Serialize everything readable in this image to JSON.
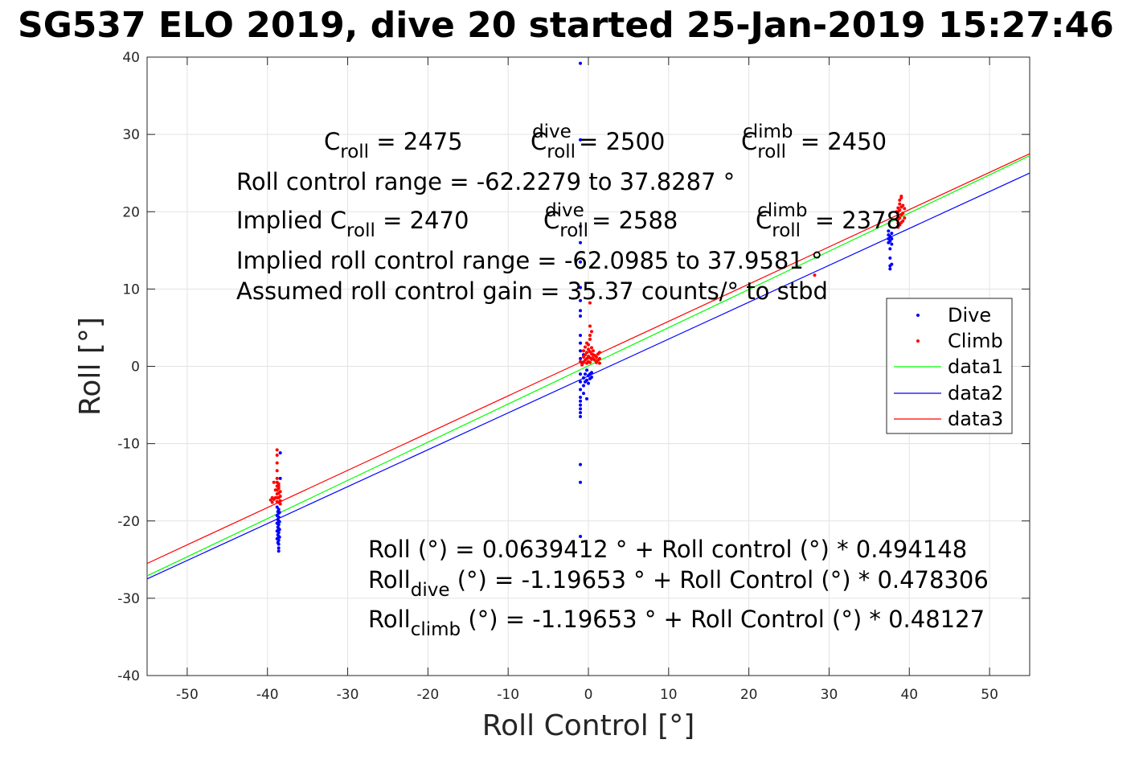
{
  "title": "SG537 ELO 2019, dive 20 started 25-Jan-2019 15:27:46",
  "chart_data": {
    "type": "scatter",
    "xlabel": "Roll Control [°]",
    "ylabel": "Roll [°]",
    "xlim": [
      -55,
      55
    ],
    "ylim": [
      -40,
      40
    ],
    "xticks": [
      -50,
      -40,
      -30,
      -20,
      -10,
      0,
      10,
      20,
      30,
      40,
      50
    ],
    "yticks": [
      -40,
      -30,
      -20,
      -10,
      0,
      10,
      20,
      30,
      40
    ],
    "grid": true,
    "legend_position": "right",
    "legend": [
      "Dive",
      "Climb",
      "data1",
      "data2",
      "data3"
    ],
    "series": [
      {
        "name": "Dive",
        "kind": "points",
        "color": "#0000ff",
        "points": [
          [
            -38.6,
            -18.5
          ],
          [
            -38.6,
            -19.0
          ],
          [
            -38.6,
            -19.5
          ],
          [
            -38.6,
            -20.0
          ],
          [
            -38.6,
            -20.5
          ],
          [
            -38.6,
            -21.0
          ],
          [
            -38.6,
            -21.5
          ],
          [
            -38.6,
            -22.0
          ],
          [
            -38.6,
            -22.5
          ],
          [
            -38.6,
            -23.0
          ],
          [
            -38.6,
            -23.5
          ],
          [
            -38.6,
            -23.9
          ],
          [
            -38.7,
            -18.8
          ],
          [
            -38.7,
            -19.8
          ],
          [
            -38.7,
            -20.8
          ],
          [
            -38.7,
            -21.8
          ],
          [
            -38.7,
            -22.8
          ],
          [
            -38.8,
            -18.2
          ],
          [
            -38.8,
            -19.3
          ],
          [
            -38.8,
            -20.3
          ],
          [
            -38.8,
            -21.3
          ],
          [
            -38.8,
            -22.3
          ],
          [
            -38.5,
            -18.9
          ],
          [
            -38.5,
            -20.1
          ],
          [
            -38.5,
            -21.1
          ],
          [
            -38.5,
            -22.1
          ],
          [
            -38.4,
            -11.2
          ],
          [
            -38.4,
            -14.5
          ],
          [
            -1.0,
            39.2
          ],
          [
            -1.0,
            29.3
          ],
          [
            -1.0,
            18.1
          ],
          [
            -1.0,
            16.0
          ],
          [
            -1.0,
            13.5
          ],
          [
            -1.0,
            10.2
          ],
          [
            -1.0,
            8.5
          ],
          [
            -1.0,
            7.2
          ],
          [
            -1.0,
            6.5
          ],
          [
            -1.0,
            4.0
          ],
          [
            -1.0,
            3.0
          ],
          [
            -1.0,
            2.0
          ],
          [
            -1.0,
            1.0
          ],
          [
            -1.0,
            -1.0
          ],
          [
            -1.0,
            -2.0
          ],
          [
            -1.0,
            -3.0
          ],
          [
            -1.0,
            -4.0
          ],
          [
            -1.0,
            -4.5
          ],
          [
            -1.0,
            -5.0
          ],
          [
            -1.0,
            -5.5
          ],
          [
            -1.0,
            -6.0
          ],
          [
            -1.0,
            -6.5
          ],
          [
            -1.0,
            -12.7
          ],
          [
            -1.0,
            -15.0
          ],
          [
            -1.0,
            -22.0
          ],
          [
            -0.6,
            -1.5
          ],
          [
            -0.6,
            -2.5
          ],
          [
            -0.6,
            -3.5
          ],
          [
            -0.4,
            -1.0
          ],
          [
            -0.4,
            -2.0
          ],
          [
            -0.2,
            -0.5
          ],
          [
            -0.2,
            -1.8
          ],
          [
            0.0,
            -1.2
          ],
          [
            0.0,
            -2.2
          ],
          [
            0.2,
            -1.0
          ],
          [
            0.2,
            -1.6
          ],
          [
            0.4,
            -0.8
          ],
          [
            0.4,
            -1.4
          ],
          [
            -0.2,
            -4.2
          ],
          [
            -0.6,
            1.5
          ],
          [
            -0.8,
            0.5
          ],
          [
            37.4,
            16.0
          ],
          [
            37.4,
            16.5
          ],
          [
            37.4,
            17.0
          ],
          [
            37.4,
            17.5
          ],
          [
            37.6,
            16.2
          ],
          [
            37.6,
            16.8
          ],
          [
            37.6,
            15.2
          ],
          [
            37.6,
            14.0
          ],
          [
            37.6,
            13.0
          ],
          [
            37.6,
            12.6
          ],
          [
            37.8,
            16.5
          ],
          [
            37.8,
            17.2
          ],
          [
            37.8,
            15.8
          ],
          [
            37.8,
            13.2
          ]
        ]
      },
      {
        "name": "Climb",
        "kind": "points",
        "color": "#ff0000",
        "points": [
          [
            -38.8,
            -10.8
          ],
          [
            -38.8,
            -11.5
          ],
          [
            -38.8,
            -12.5
          ],
          [
            -38.8,
            -13.5
          ],
          [
            -38.8,
            -14.5
          ],
          [
            -38.8,
            -15.0
          ],
          [
            -38.8,
            -15.5
          ],
          [
            -38.8,
            -16.0
          ],
          [
            -38.8,
            -16.5
          ],
          [
            -38.8,
            -17.0
          ],
          [
            -38.8,
            -17.5
          ],
          [
            -38.6,
            -15.2
          ],
          [
            -38.6,
            -15.8
          ],
          [
            -38.6,
            -16.4
          ],
          [
            -38.6,
            -17.0
          ],
          [
            -38.6,
            -17.6
          ],
          [
            -38.6,
            -15.5
          ],
          [
            -38.4,
            -16.8
          ],
          [
            -38.4,
            -17.4
          ],
          [
            -38.4,
            -17.8
          ],
          [
            -38.4,
            -16.2
          ],
          [
            -39.0,
            -16.0
          ],
          [
            -39.0,
            -17.0
          ],
          [
            -39.2,
            -15.0
          ],
          [
            -39.2,
            -17.2
          ],
          [
            -39.4,
            -17.0
          ],
          [
            -39.4,
            -17.6
          ],
          [
            -39.6,
            -17.3
          ],
          [
            -0.6,
            0.5
          ],
          [
            -0.6,
            1.2
          ],
          [
            -0.6,
            2.0
          ],
          [
            -0.4,
            0.8
          ],
          [
            -0.4,
            1.5
          ],
          [
            -0.4,
            2.5
          ],
          [
            -0.2,
            0.4
          ],
          [
            -0.2,
            1.0
          ],
          [
            -0.2,
            1.8
          ],
          [
            -0.2,
            3.0
          ],
          [
            0.0,
            0.6
          ],
          [
            0.0,
            1.3
          ],
          [
            0.0,
            2.2
          ],
          [
            0.0,
            2.8
          ],
          [
            0.2,
            0.5
          ],
          [
            0.2,
            1.1
          ],
          [
            0.2,
            1.9
          ],
          [
            0.2,
            3.5
          ],
          [
            0.4,
            0.9
          ],
          [
            0.4,
            1.6
          ],
          [
            0.4,
            2.4
          ],
          [
            0.6,
            1.0
          ],
          [
            0.6,
            1.5
          ],
          [
            0.6,
            2.0
          ],
          [
            0.8,
            0.8
          ],
          [
            0.8,
            1.4
          ],
          [
            1.0,
            0.5
          ],
          [
            1.0,
            1.2
          ],
          [
            1.2,
            0.8
          ],
          [
            1.2,
            1.6
          ],
          [
            1.4,
            0.4
          ],
          [
            1.4,
            1.0
          ],
          [
            1.4,
            1.8
          ],
          [
            0.2,
            4.0
          ],
          [
            0.2,
            5.2
          ],
          [
            0.4,
            4.5
          ],
          [
            0.2,
            8.2
          ],
          [
            -0.8,
            0.2
          ],
          [
            -1.0,
            0.6
          ],
          [
            28.2,
            11.8
          ],
          [
            38.6,
            18.0
          ],
          [
            38.6,
            18.5
          ],
          [
            38.6,
            19.0
          ],
          [
            38.6,
            19.5
          ],
          [
            38.6,
            20.0
          ],
          [
            38.6,
            20.5
          ],
          [
            38.8,
            18.3
          ],
          [
            38.8,
            19.2
          ],
          [
            38.8,
            20.2
          ],
          [
            38.8,
            21.0
          ],
          [
            38.8,
            21.5
          ],
          [
            39.0,
            18.6
          ],
          [
            39.0,
            19.6
          ],
          [
            39.0,
            20.6
          ],
          [
            39.0,
            21.8
          ],
          [
            39.0,
            22.0
          ],
          [
            39.2,
            18.8
          ],
          [
            39.2,
            19.8
          ],
          [
            39.2,
            20.8
          ],
          [
            39.4,
            19.2
          ],
          [
            39.4,
            20.4
          ],
          [
            38.4,
            19.0
          ],
          [
            38.4,
            20.0
          ]
        ]
      },
      {
        "name": "data1",
        "kind": "line",
        "color": "#00ff00",
        "x": [
          -55,
          55
        ],
        "y": [
          -27.11,
          27.24
        ]
      },
      {
        "name": "data2",
        "kind": "line",
        "color": "#0000ff",
        "x": [
          -55,
          55
        ],
        "y": [
          -27.5,
          25.0
        ]
      },
      {
        "name": "data3",
        "kind": "line",
        "color": "#ff0000",
        "x": [
          -55,
          55
        ],
        "y": [
          -25.5,
          27.5
        ]
      }
    ],
    "annotations": [
      {
        "parts": [
          [
            [
              "C",
              ""
            ],
            [
              "roll",
              "sub"
            ],
            [
              " = 2475",
              ""
            ]
          ],
          [
            [
              "C",
              ""
            ],
            [
              "roll",
              "sub"
            ],
            [
              "dive",
              "sup"
            ],
            [
              " = 2500",
              ""
            ]
          ],
          [
            [
              "C",
              ""
            ],
            [
              "roll",
              "sub"
            ],
            [
              "climb",
              "sup"
            ],
            [
              " = 2450",
              ""
            ]
          ]
        ]
      },
      {
        "parts": [
          [
            [
              "Roll control range = -62.2279 to 37.8287 °",
              ""
            ]
          ]
        ]
      },
      {
        "parts": [
          [
            [
              "Implied C",
              ""
            ],
            [
              "roll",
              "sub"
            ],
            [
              " = 2470",
              ""
            ]
          ],
          [
            [
              "C",
              ""
            ],
            [
              "roll",
              "sub"
            ],
            [
              "dive",
              "sup"
            ],
            [
              " = 2588",
              ""
            ]
          ],
          [
            [
              "C",
              ""
            ],
            [
              "roll",
              "sub"
            ],
            [
              "climb",
              "sup"
            ],
            [
              " = 2378",
              ""
            ]
          ]
        ]
      },
      {
        "parts": [
          [
            [
              "Implied roll control range = -62.0985 to 37.9581 °",
              ""
            ]
          ]
        ]
      },
      {
        "parts": [
          [
            [
              "Assumed roll control gain = 35.37 counts/° to stbd",
              ""
            ]
          ]
        ]
      },
      {
        "parts": [
          [
            [
              "Roll (°) = 0.0639412 ° + Roll control (°) * 0.494148",
              ""
            ]
          ]
        ]
      },
      {
        "parts": [
          [
            [
              "Roll",
              ""
            ],
            [
              "dive",
              "sub"
            ],
            [
              " (°) = -1.19653 ° + Roll Control (°) * 0.478306",
              ""
            ]
          ]
        ]
      },
      {
        "parts": [
          [
            [
              "Roll",
              ""
            ],
            [
              "climb",
              "sub"
            ],
            [
              " (°) = -1.19653 ° + Roll Control (°) * 0.48127",
              ""
            ]
          ]
        ]
      }
    ]
  }
}
